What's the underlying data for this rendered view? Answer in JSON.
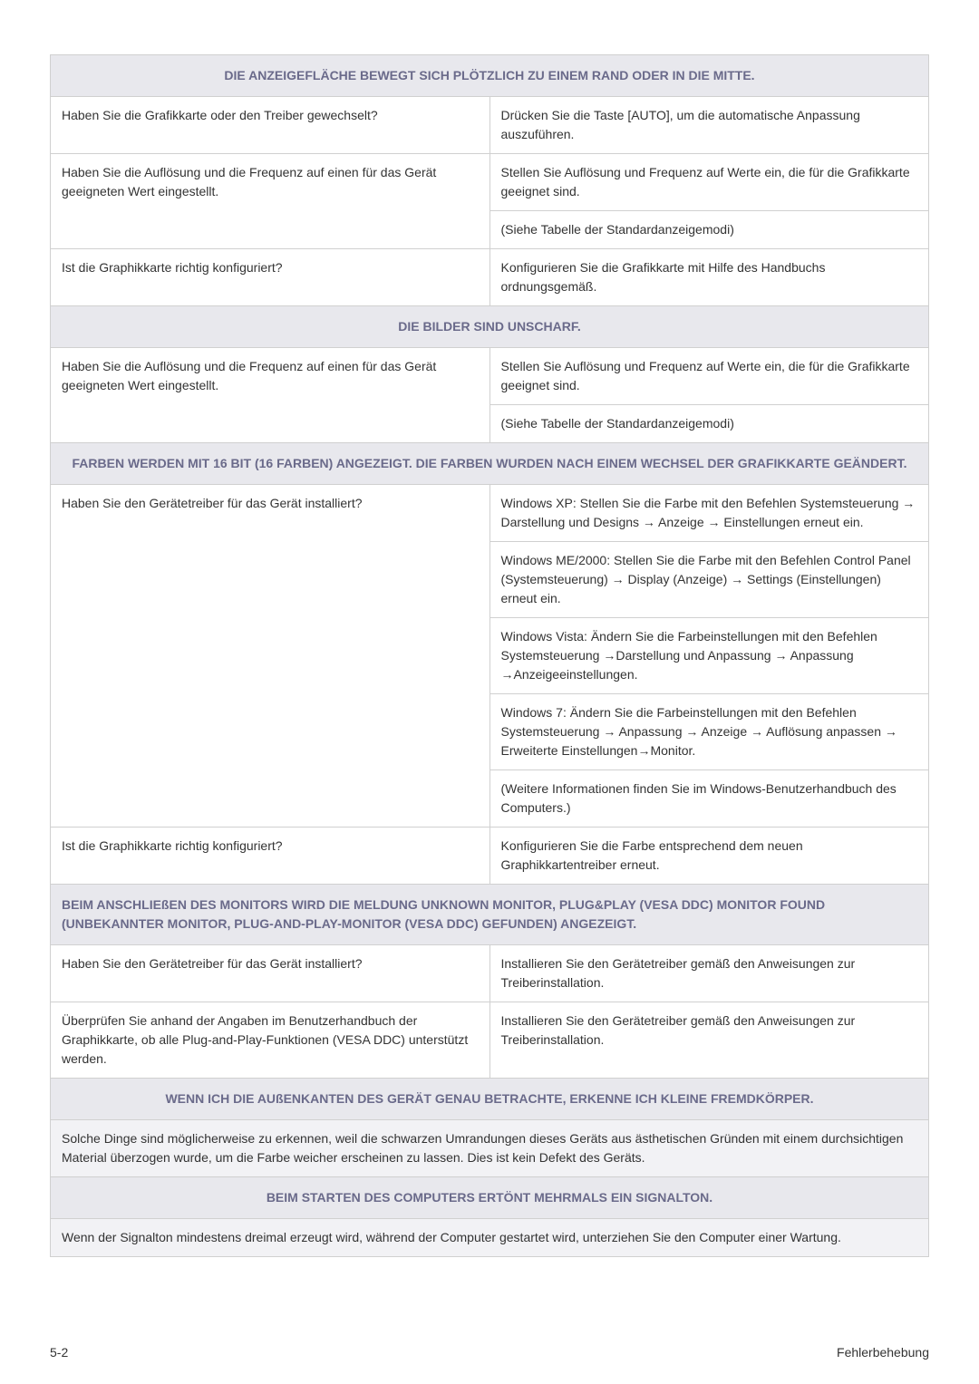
{
  "colors": {
    "header_bg": "#e8e8ed",
    "header_text": "#6a6a8a",
    "border": "#d0d0d0",
    "body_text": "#333333",
    "page_bg": "#ffffff",
    "desc_bg": "#f2f2f5"
  },
  "section1": {
    "title": "DIE ANZEIGEFLÄCHE BEWEGT SICH PLÖTZLICH ZU EINEM RAND ODER IN DIE MITTE.",
    "r1c1": "Haben Sie die Grafikkarte oder den Treiber gewechselt?",
    "r1c2": "Drücken Sie die Taste [AUTO], um die automatische Anpassung auszuführen.",
    "r2c1": "Haben Sie die Auflösung und die Frequenz auf einen für das Gerät geeigneten Wert eingestellt.",
    "r2c2a": "Stellen Sie Auflösung und Frequenz auf Werte ein, die für die Grafikkarte geeignet sind.",
    "r2c2b": "(Siehe Tabelle der Standardanzeigemodi)",
    "r3c1": "Ist die Graphikkarte richtig konfiguriert?",
    "r3c2": "Konfigurieren Sie die Grafikkarte mit Hilfe des Handbuchs ordnungsgemäß."
  },
  "section2": {
    "title": "DIE BILDER SIND UNSCHARF.",
    "r1c1": "Haben Sie die Auflösung und die Frequenz auf einen für das Gerät geeigneten Wert eingestellt.",
    "r1c2a": "Stellen Sie Auflösung und Frequenz auf Werte ein, die für die Grafikkarte geeignet sind.",
    "r1c2b": "(Siehe Tabelle der Standardanzeigemodi)"
  },
  "section3": {
    "title": "FARBEN WERDEN MIT 16 BIT (16 FARBEN) ANGEZEIGT. DIE FARBEN WURDEN NACH EINEM WECHSEL DER GRAFIKKARTE GEÄNDERT.",
    "r1c1": "Haben Sie den Gerätetreiber für das Gerät installiert?",
    "r1c2a": "Windows XP: Stellen Sie die Farbe mit den Befehlen Systemsteuerung → Darstellung und Designs → Anzeige → Einstellungen erneut ein.",
    "r1c2b": "Windows ME/2000: Stellen Sie die Farbe mit den Befehlen Control Panel (Systemsteuerung) → Display (Anzeige) → Settings (Einstellungen) erneut ein.",
    "r1c2c": "Windows Vista: Ändern Sie die Farbeinstellungen mit den Befehlen Systemsteuerung →Darstellung und Anpassung → Anpassung →Anzeigeeinstellungen.",
    "r1c2d": "Windows 7: Ändern Sie die Farbeinstellungen mit den Befehlen Systemsteuerung → Anpassung → Anzeige → Auflösung anpassen → Erweiterte Einstellungen→Monitor.",
    "r1c2e": "(Weitere Informationen finden Sie im Windows-Benutzerhandbuch des Computers.)",
    "r2c1": "Ist die Graphikkarte richtig konfiguriert?",
    "r2c2": "Konfigurieren Sie die Farbe entsprechend dem neuen Graphikkartentreiber erneut."
  },
  "section4": {
    "title": "BEIM ANSCHLIEßEN DES MONITORS WIRD DIE MELDUNG UNKNOWN MONITOR, PLUG&PLAY (VESA DDC) MONITOR FOUND (UNBEKANNTER MONITOR, PLUG-AND-PLAY-MONITOR (VESA DDC) GEFUNDEN) ANGEZEIGT.",
    "r1c1": "Haben Sie den Gerätetreiber für das Gerät installiert?",
    "r1c2": "Installieren Sie den Gerätetreiber gemäß den Anweisungen zur Treiberinstallation.",
    "r2c1": "Überprüfen Sie anhand der Angaben im Benutzerhandbuch der Graphikkarte, ob alle Plug-and-Play-Funktionen (VESA DDC) unterstützt werden.",
    "r2c2": "Installieren Sie den Gerätetreiber gemäß den Anweisungen zur Treiberinstallation."
  },
  "section5": {
    "title": "WENN ICH DIE AUßENKANTEN DES GERÄT GENAU BETRACHTE, ERKENNE ICH KLEINE FREMDKÖRPER.",
    "desc": "Solche Dinge sind möglicherweise zu erkennen, weil die schwarzen Umrandungen dieses Geräts aus ästhetischen Gründen mit einem durchsichtigen Material überzogen wurde, um die Farbe weicher erscheinen zu lassen. Dies ist kein Defekt des Geräts."
  },
  "section6": {
    "title": "BEIM STARTEN DES COMPUTERS ERTÖNT MEHRMALS EIN SIGNALTON.",
    "desc": "Wenn der Signalton mindestens dreimal erzeugt wird, während der Computer gestartet wird, unterziehen Sie den Computer einer Wartung."
  },
  "footer": {
    "left": "5-2",
    "right": "Fehlerbehebung"
  }
}
